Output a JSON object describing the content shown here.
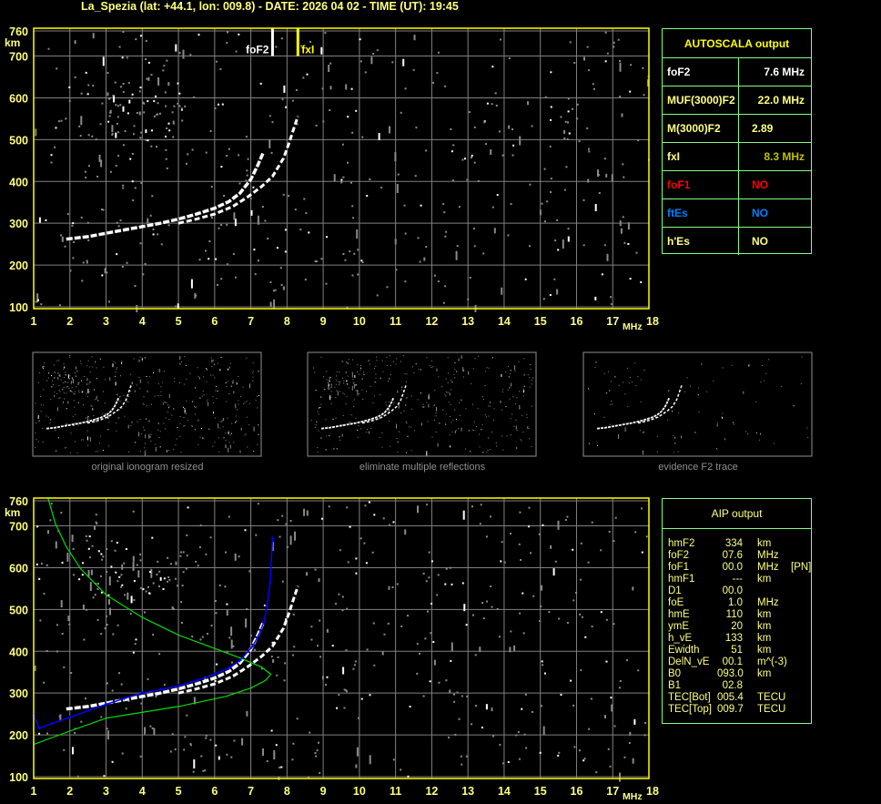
{
  "title": "La_Spezia (lat: +44.1, lon: 009.8) - DATE: 2026 04 02 - TIME (UT): 19:45",
  "colors": {
    "text": "#ffff80",
    "frame": "#ffff00",
    "grid": "#808080",
    "table_border": "#80ff80",
    "trace": "#ffffff",
    "profile": "#00dd00",
    "aip_trace": "#0000ff"
  },
  "autoscala": {
    "header": "AUTOSCALA output",
    "rows": [
      {
        "label": "foF2",
        "value": "7.6 MHz",
        "color": "#ffffff",
        "align": "right"
      },
      {
        "label": "MUF(3000)F2",
        "value": "22.0 MHz",
        "color": "#ffff80",
        "align": "right"
      },
      {
        "label": "M(3000)F2",
        "value": "2.89",
        "color": "#ffff80",
        "align": "left"
      },
      {
        "label": "fxI",
        "value": "8.3 MHz",
        "color": "#ffff80",
        "value_color": "#c0c000",
        "align": "right"
      },
      {
        "label": "foF1",
        "value": "NO",
        "color": "#ff0000",
        "align": "left"
      },
      {
        "label": "ftEs",
        "value": "NO",
        "color": "#0080ff",
        "align": "left"
      },
      {
        "label": "h'Es",
        "value": "NO",
        "color": "#ffff80",
        "align": "left"
      }
    ]
  },
  "aip": {
    "header": "AIP output",
    "rows": [
      {
        "param": "hmF2",
        "value": "334",
        "unit": "km",
        "flag": ""
      },
      {
        "param": "foF2",
        "value": "07.6",
        "unit": "MHz",
        "flag": ""
      },
      {
        "param": "foF1",
        "value": "00.0",
        "unit": "MHz",
        "flag": "[PN]"
      },
      {
        "param": "hmF1",
        "value": "---",
        "unit": "km",
        "flag": ""
      },
      {
        "param": "D1",
        "value": "00.0",
        "unit": "",
        "flag": ""
      },
      {
        "param": "foE",
        "value": "1.0",
        "unit": "MHz",
        "flag": ""
      },
      {
        "param": "hmE",
        "value": "110",
        "unit": "km",
        "flag": ""
      },
      {
        "param": "ymE",
        "value": "20",
        "unit": "km",
        "flag": ""
      },
      {
        "param": "h_vE",
        "value": "133",
        "unit": "km",
        "flag": ""
      },
      {
        "param": "Ewidth",
        "value": "51",
        "unit": "km",
        "flag": ""
      },
      {
        "param": "DelN_vE",
        "value": "00.1",
        "unit": "m^(-3)",
        "flag": ""
      },
      {
        "param": "B0",
        "value": "093.0",
        "unit": "km",
        "flag": ""
      },
      {
        "param": "B1",
        "value": "02.8",
        "unit": "",
        "flag": ""
      },
      {
        "param": "TEC[Bot]",
        "value": "005.4",
        "unit": "TECU",
        "flag": ""
      },
      {
        "param": "TEC[Top]",
        "value": "009.7",
        "unit": "TECU",
        "flag": ""
      }
    ]
  },
  "thumbnails": [
    {
      "caption": "original ionogram resized"
    },
    {
      "caption": "eliminate multiple reflections"
    },
    {
      "caption": "evidence F2 trace"
    }
  ],
  "chart_data": [
    {
      "type": "scatter",
      "xlabel": "MHz",
      "ylabel": "km",
      "xlim": [
        1,
        18
      ],
      "ylim": [
        100,
        760
      ],
      "xticks": [
        1,
        2,
        3,
        4,
        5,
        6,
        7,
        8,
        9,
        10,
        11,
        12,
        13,
        14,
        15,
        16,
        17,
        18
      ],
      "yticks": [
        100,
        200,
        300,
        400,
        500,
        600,
        700,
        760
      ],
      "grid": true,
      "markers": [
        {
          "label": "foF2",
          "freq": 7.6,
          "color": "#ffffff"
        },
        {
          "label": "fxI",
          "freq": 8.3,
          "color": "#ffff00"
        }
      ],
      "o_trace": [
        [
          1.9,
          262
        ],
        [
          2.5,
          268
        ],
        [
          3.0,
          276
        ],
        [
          3.5,
          284
        ],
        [
          4.0,
          292
        ],
        [
          4.5,
          300
        ],
        [
          5.0,
          310
        ],
        [
          5.5,
          322
        ],
        [
          6.0,
          336
        ],
        [
          6.4,
          352
        ],
        [
          6.7,
          372
        ],
        [
          7.0,
          405
        ],
        [
          7.2,
          440
        ],
        [
          7.35,
          470
        ]
      ],
      "x_trace": [
        [
          5.0,
          300
        ],
        [
          5.5,
          310
        ],
        [
          6.0,
          322
        ],
        [
          6.5,
          340
        ],
        [
          6.9,
          362
        ],
        [
          7.3,
          388
        ],
        [
          7.6,
          412
        ],
        [
          7.9,
          455
        ],
        [
          8.05,
          490
        ],
        [
          8.2,
          530
        ],
        [
          8.3,
          556
        ]
      ]
    },
    {
      "type": "line",
      "xlabel": "MHz",
      "ylabel": "km",
      "xlim": [
        1,
        18
      ],
      "ylim": [
        100,
        760
      ],
      "xticks": [
        1,
        2,
        3,
        4,
        5,
        6,
        7,
        8,
        9,
        10,
        11,
        12,
        13,
        14,
        15,
        16,
        17,
        18
      ],
      "yticks": [
        100,
        200,
        300,
        400,
        500,
        600,
        700,
        760
      ],
      "grid": true,
      "o_trace": [
        [
          1.9,
          262
        ],
        [
          2.5,
          268
        ],
        [
          3.0,
          276
        ],
        [
          3.5,
          284
        ],
        [
          4.0,
          292
        ],
        [
          4.5,
          300
        ],
        [
          5.0,
          310
        ],
        [
          5.5,
          322
        ],
        [
          6.0,
          336
        ],
        [
          6.4,
          352
        ],
        [
          6.7,
          372
        ],
        [
          7.0,
          405
        ],
        [
          7.2,
          440
        ],
        [
          7.35,
          470
        ]
      ],
      "x_trace": [
        [
          5.0,
          300
        ],
        [
          5.5,
          310
        ],
        [
          6.0,
          322
        ],
        [
          6.5,
          340
        ],
        [
          6.9,
          362
        ],
        [
          7.3,
          388
        ],
        [
          7.6,
          412
        ],
        [
          7.9,
          455
        ],
        [
          8.05,
          490
        ],
        [
          8.2,
          530
        ],
        [
          8.3,
          556
        ]
      ],
      "profile": [
        [
          1.0,
          177
        ],
        [
          1.65,
          198
        ],
        [
          3.0,
          240
        ],
        [
          5.0,
          268
        ],
        [
          6.3,
          292
        ],
        [
          7.0,
          312
        ],
        [
          7.4,
          330
        ],
        [
          7.55,
          345
        ],
        [
          7.3,
          362
        ],
        [
          6.7,
          384
        ],
        [
          5.9,
          410
        ],
        [
          5.0,
          439
        ],
        [
          4.0,
          481
        ],
        [
          3.0,
          535
        ],
        [
          2.3,
          597
        ],
        [
          1.9,
          650
        ],
        [
          1.6,
          705
        ],
        [
          1.4,
          765
        ]
      ],
      "aip_trace": [
        [
          1.0,
          247
        ],
        [
          1.15,
          216
        ],
        [
          1.5,
          227
        ],
        [
          2.0,
          242
        ],
        [
          2.5,
          258
        ],
        [
          3.0,
          273
        ],
        [
          3.5,
          287
        ],
        [
          4.0,
          300
        ],
        [
          4.5,
          308
        ],
        [
          5.0,
          317
        ],
        [
          5.5,
          330
        ],
        [
          6.0,
          345
        ],
        [
          6.4,
          360
        ],
        [
          6.7,
          378
        ],
        [
          7.03,
          410
        ],
        [
          7.2,
          435
        ],
        [
          7.36,
          470
        ],
        [
          7.45,
          510
        ],
        [
          7.53,
          564
        ],
        [
          7.6,
          670
        ]
      ]
    }
  ]
}
